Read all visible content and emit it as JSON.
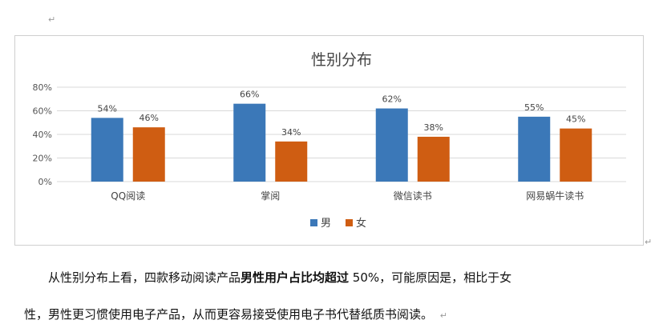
{
  "marks": {
    "return_mark": "↵"
  },
  "chart_data": {
    "type": "bar",
    "title": "性别分布",
    "categories": [
      "QQ阅读",
      "掌阅",
      "微信读书",
      "网易蜗牛读书"
    ],
    "series": [
      {
        "name": "男",
        "values": [
          54,
          66,
          62,
          55
        ],
        "labels": [
          "54%",
          "66%",
          "62%",
          "55%"
        ],
        "color": "#3b78b8"
      },
      {
        "name": "女",
        "values": [
          46,
          34,
          38,
          45
        ],
        "labels": [
          "46%",
          "34%",
          "38%",
          "45%"
        ],
        "color": "#cf5d12"
      }
    ],
    "ylim": [
      0,
      80
    ],
    "yticks": [
      "0%",
      "20%",
      "40%",
      "60%",
      "80%"
    ],
    "ytick_values": [
      0,
      20,
      40,
      60,
      80
    ],
    "grid": true,
    "legend_position": "bottom",
    "colors": {
      "gridline": "#d9d9d9",
      "axis_text": "#555555"
    }
  },
  "paragraph": {
    "line1_start": "从性别分布上看，四款移动阅读产品",
    "line1_bold": "男性用户占比均超过",
    "line1_end": " 50%，可能原因是，相比于女",
    "line2": "性，男性更习惯使用电子产品，从而更容易接受使用电子书代替纸质书阅读。"
  }
}
